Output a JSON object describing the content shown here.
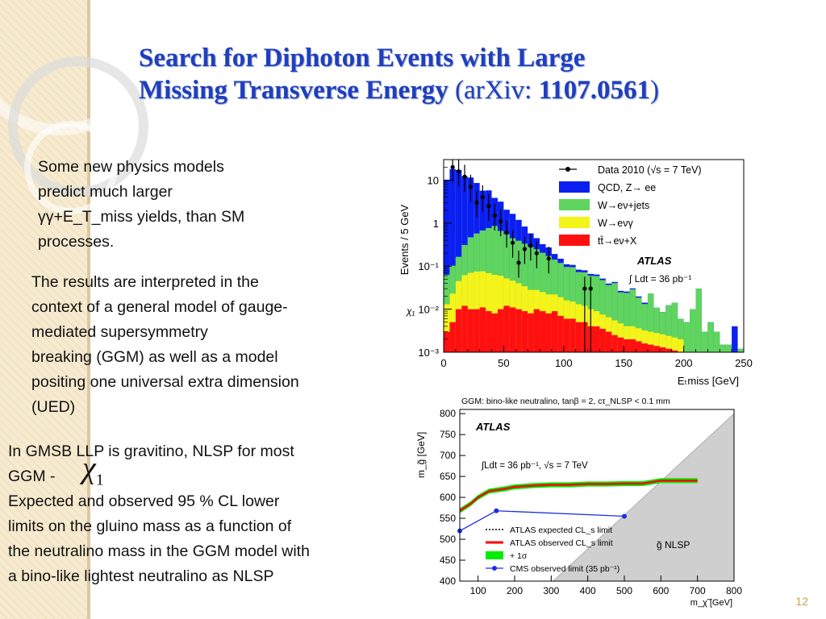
{
  "slide": {
    "title_line1": "Search for Diphoton Events with Large",
    "title_line2": "Missing Transverse Energy",
    "title_ref_open": "(arXiv: ",
    "title_ref_num": "1107.0561",
    "title_ref_close": ")",
    "para1": [
      "Some new physics models",
      "predict much larger",
      "γγ+E_T_miss  yields, than SM",
      "processes."
    ],
    "para2": [
      "The results are interpreted in the",
      "context of a general model of gauge-",
      "mediated supersymmetry",
      "breaking (GGM) as well as a model",
      "positing one universal extra dimension",
      "(UED)"
    ],
    "para3_line1": "In GMSB LLP is gravitino, NLSP for most",
    "para3_line2": "GGM -",
    "chi_symbol": "χ",
    "chi_sub": "1",
    "para4": [
      "Expected and observed 95 % CL lower",
      "limits on the gluino mass as a function of",
      "the neutralino mass in the GGM model with",
      "a bino-like lightest neutralino as NLSP"
    ],
    "page_number": "12"
  },
  "chart_data": [
    {
      "type": "bar",
      "ylabel": "Events / 5 GeV",
      "xlabel": "E_T^miss [GeV]",
      "yscale": "log",
      "ylim": [
        0.001,
        30
      ],
      "xlim": [
        0,
        250
      ],
      "x_ticks": [
        "0",
        "50",
        "100",
        "150",
        "200",
        "250"
      ],
      "y_ticks": [
        "10⁻³",
        "10⁻²",
        "10⁻¹",
        "1",
        "10"
      ],
      "legend": [
        {
          "label": "Data 2010 (√s = 7 TeV)",
          "color": "#000000",
          "kind": "marker"
        },
        {
          "label": "QCD, Z→ ee",
          "color": "#0a1ff0",
          "kind": "fill"
        },
        {
          "label": "W→eν+jets",
          "color": "#5fd45f",
          "kind": "fill"
        },
        {
          "label": "W→eνγ",
          "color": "#f4f41a",
          "kind": "fill"
        },
        {
          "label": "tt̄→eν+X",
          "color": "#ff1010",
          "kind": "fill"
        }
      ],
      "experiment": "ATLAS",
      "lumi": "∫ Ldt = 36 pb⁻¹",
      "left_label": "χ₁",
      "bin_width": 5,
      "series": [
        {
          "name": "tt̄→eν+X",
          "color": "#ff1010",
          "values": [
            0.003,
            0.005,
            0.01,
            0.012,
            0.01,
            0.01,
            0.011,
            0.009,
            0.008,
            0.01,
            0.012,
            0.011,
            0.01,
            0.009,
            0.008,
            0.01,
            0.009,
            0.008,
            0.009,
            0.007,
            0.006,
            0.006,
            0.005,
            0.005,
            0.004,
            0.004,
            0.0035,
            0.003,
            0.0025,
            0.0022,
            0.002,
            0.002,
            0.0018,
            0.0016,
            0.0015,
            0.0014,
            0.0013,
            0.0012,
            0.0011,
            0.001,
            0,
            0,
            0,
            0,
            0,
            0,
            0,
            0,
            0,
            0
          ]
        },
        {
          "name": "W→eνγ",
          "color": "#f4f41a",
          "values": [
            0.01,
            0.018,
            0.035,
            0.05,
            0.06,
            0.065,
            0.065,
            0.06,
            0.055,
            0.05,
            0.04,
            0.035,
            0.03,
            0.025,
            0.02,
            0.018,
            0.016,
            0.014,
            0.013,
            0.012,
            0.01,
            0.009,
            0.008,
            0.007,
            0.006,
            0.005,
            0.004,
            0.0035,
            0.003,
            0.0025,
            0.002,
            0.002,
            0.0018,
            0.0016,
            0.0015,
            0.0014,
            0.0013,
            0.0012,
            0.0011,
            0.001,
            0,
            0,
            0,
            0,
            0,
            0,
            0,
            0,
            0,
            0
          ]
        },
        {
          "name": "W→eν+jets",
          "color": "#5fd45f",
          "values": [
            0.05,
            0.08,
            0.12,
            0.25,
            0.4,
            0.5,
            0.6,
            0.7,
            0.8,
            0.6,
            0.5,
            0.4,
            0.35,
            0.3,
            0.25,
            0.22,
            0.18,
            0.15,
            0.12,
            0.1,
            0.08,
            0.08,
            0.06,
            0.06,
            0.05,
            0.05,
            0.04,
            0.03,
            0.035,
            0.02,
            0.02,
            0.025,
            0.015,
            0.01,
            0.02,
            0.008,
            0.006,
            0.01,
            0.012,
            0.004,
            0.005,
            0.01,
            0.03,
            0.003,
            0.005,
            0.003,
            0.0015,
            0.0015,
            0.001,
            0.0012
          ]
        },
        {
          "name": "QCD, Z→ ee",
          "color": "#0a1ff0",
          "values": [
            10,
            18,
            17,
            12,
            11,
            8,
            5,
            5,
            3,
            2.5,
            1.5,
            1.2,
            0.8,
            0.5,
            0.3,
            0.2,
            0.12,
            0.1,
            0.05,
            0.03,
            0.015,
            0.012,
            0.01,
            0.008,
            0.006,
            0.005,
            0.004,
            0.003,
            0.0025,
            0.002,
            0.0018,
            0.0015,
            0.0012,
            0.001,
            0,
            0,
            0,
            0,
            0,
            0,
            0,
            0,
            0,
            0,
            0,
            0,
            0,
            0,
            0.003,
            0
          ]
        }
      ],
      "data_points": [
        {
          "x": 7.5,
          "y": 20
        },
        {
          "x": 12.5,
          "y": 16
        },
        {
          "x": 17.5,
          "y": 12
        },
        {
          "x": 22.5,
          "y": 7
        },
        {
          "x": 27.5,
          "y": 3
        },
        {
          "x": 32.5,
          "y": 4
        },
        {
          "x": 37.5,
          "y": 2.5
        },
        {
          "x": 42.5,
          "y": 1.5
        },
        {
          "x": 47.5,
          "y": 1.1
        },
        {
          "x": 52.5,
          "y": 0.6
        },
        {
          "x": 57.5,
          "y": 0.35
        },
        {
          "x": 62.5,
          "y": 0.12
        },
        {
          "x": 67.5,
          "y": 0.25
        },
        {
          "x": 72.5,
          "y": 0.3
        },
        {
          "x": 77.5,
          "y": 0.2
        },
        {
          "x": 87.5,
          "y": 0.15
        },
        {
          "x": 117.5,
          "y": 0.03
        },
        {
          "x": 122.5,
          "y": 0.03
        }
      ]
    },
    {
      "type": "line",
      "title": "GGM: bino-like neutralino, tanβ = 2, cτ_NLSP < 0.1 mm",
      "xlabel": "m_χ̃ [GeV]",
      "ylabel": "m_g̃ [GeV]",
      "xlim": [
        50,
        800
      ],
      "ylim": [
        400,
        810
      ],
      "x_ticks": [
        "100",
        "200",
        "300",
        "400",
        "500",
        "600",
        "700",
        "800"
      ],
      "y_ticks": [
        "400",
        "450",
        "500",
        "550",
        "600",
        "650",
        "700",
        "750",
        "800"
      ],
      "experiment": "ATLAS",
      "lumi": "∫Ldt = 36 pb⁻¹, √s = 7 TeV",
      "region_label": "g̃ NLSP",
      "legend": [
        {
          "label": "ATLAS expected CL_s limit",
          "color": "#000000",
          "kind": "dotted"
        },
        {
          "label": "ATLAS observed CL_s limit",
          "color": "#ff0000",
          "kind": "line"
        },
        {
          "label": "+ 1σ",
          "color": "#00ee00",
          "kind": "fill"
        },
        {
          "label": "CMS observed limit (35 pb⁻¹)",
          "color": "#1a2fe0",
          "kind": "marker-line"
        }
      ],
      "series": [
        {
          "name": "ATLAS observed CL_s limit",
          "color": "#ff0000",
          "x": [
            50,
            80,
            100,
            130,
            170,
            200,
            250,
            300,
            350,
            400,
            450,
            500,
            550,
            600,
            650,
            700
          ],
          "y": [
            568,
            585,
            600,
            615,
            620,
            625,
            628,
            630,
            630,
            632,
            632,
            633,
            633,
            640,
            640,
            640
          ]
        },
        {
          "name": "CMS observed limit (35 pb⁻¹)",
          "color": "#1a2fe0",
          "x": [
            50,
            150,
            500
          ],
          "y": [
            520,
            568,
            555
          ]
        }
      ],
      "band_halfwidth": 6,
      "forbidden_region": {
        "x": [
          305,
          800,
          800
        ],
        "y": [
          400,
          400,
          800
        ]
      }
    }
  ]
}
